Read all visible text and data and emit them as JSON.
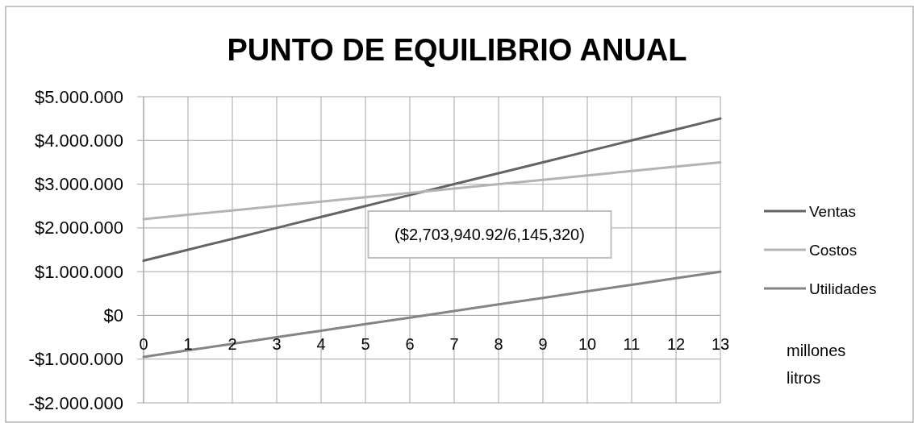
{
  "chart_data": {
    "type": "line",
    "title": "PUNTO DE EQUILIBRIO ANUAL",
    "xlabel": "millones litros",
    "x": [
      0,
      1,
      2,
      3,
      4,
      5,
      6,
      7,
      8,
      9,
      10,
      11,
      12,
      13
    ],
    "xlim": [
      0,
      13
    ],
    "xticks": [
      0,
      1,
      2,
      3,
      4,
      5,
      6,
      7,
      8,
      9,
      10,
      11,
      12,
      13
    ],
    "ylim": [
      -2000000,
      5000000
    ],
    "yticks": [
      {
        "value": -2000000,
        "label": "-$2.000.000"
      },
      {
        "value": -1000000,
        "label": "-$1.000.000"
      },
      {
        "value": 0,
        "label": "$0"
      },
      {
        "value": 1000000,
        "label": "$1.000.000"
      },
      {
        "value": 2000000,
        "label": "$2.000.000"
      },
      {
        "value": 3000000,
        "label": "$3.000.000"
      },
      {
        "value": 4000000,
        "label": "$4.000.000"
      },
      {
        "value": 5000000,
        "label": "$5.000.000"
      }
    ],
    "series": [
      {
        "name": "Ventas",
        "color": "#646464",
        "values": [
          1250000,
          1500000,
          1750000,
          2000000,
          2250000,
          2500000,
          2750000,
          3000000,
          3250000,
          3500000,
          3750000,
          4000000,
          4250000,
          4500000
        ]
      },
      {
        "name": "Costos",
        "color": "#b4b4b4",
        "values": [
          2200000,
          2300000,
          2400000,
          2500000,
          2600000,
          2700000,
          2800000,
          2900000,
          3000000,
          3100000,
          3200000,
          3300000,
          3400000,
          3500000
        ]
      },
      {
        "name": "Utilidades",
        "color": "#848484",
        "values": [
          -950000,
          -800000,
          -650000,
          -500000,
          -350000,
          -200000,
          -50000,
          100000,
          250000,
          400000,
          550000,
          700000,
          850000,
          1000000
        ]
      }
    ],
    "annotations": [
      "($2,703,940.92/6,145,320)"
    ],
    "grid": true,
    "legend": "right"
  }
}
